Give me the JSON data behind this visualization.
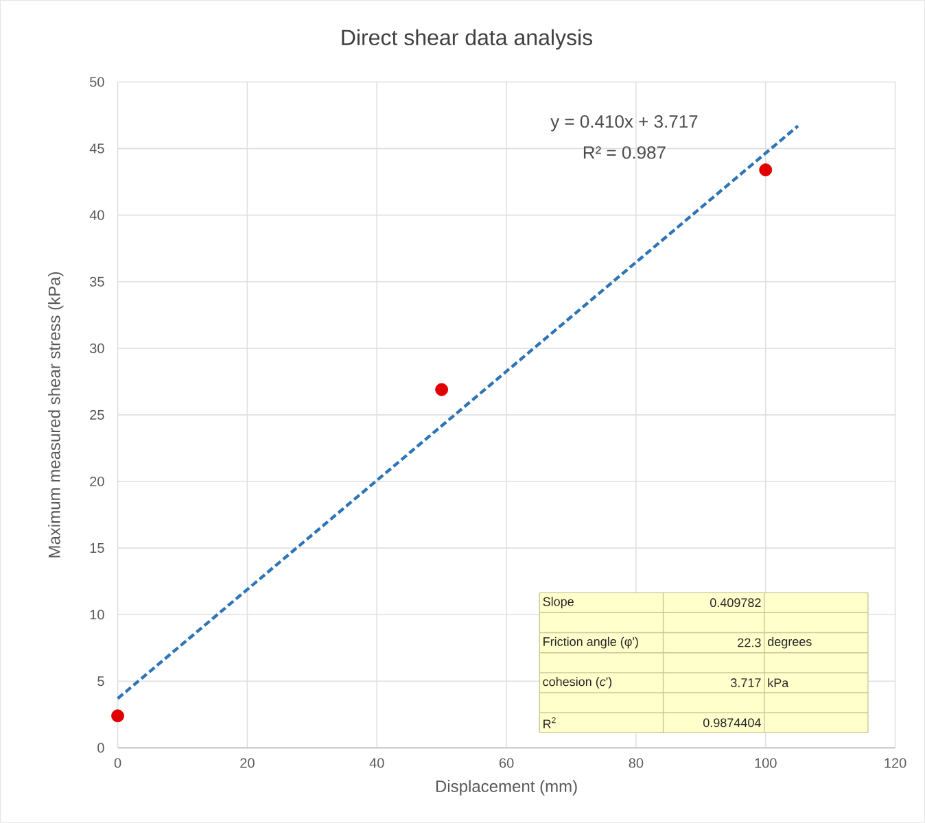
{
  "chart_data": {
    "type": "scatter",
    "title": "Direct shear data analysis",
    "xlabel": "Displacement (mm)",
    "ylabel": "Maximum measured shear stress (kPa)",
    "xlim": [
      0,
      120
    ],
    "ylim": [
      0,
      50
    ],
    "xticks": [
      0,
      20,
      40,
      60,
      80,
      100,
      120
    ],
    "yticks": [
      0,
      5,
      10,
      15,
      20,
      25,
      30,
      35,
      40,
      45,
      50
    ],
    "grid": true,
    "series": [
      {
        "color": "#e00000",
        "marker": "circle",
        "x": [
          0,
          50,
          100
        ],
        "values": [
          2.4,
          26.9,
          43.4
        ]
      },
      {
        "type": "line",
        "color": "#2e75b6",
        "marker": "none",
        "line_style": "dashed",
        "x": [
          0,
          105
        ],
        "values": [
          3.7,
          46.7
        ]
      }
    ],
    "annotations": [
      "y = 0.410x + 3.717",
      "R² = 0.987",
      "Slope",
      "0.409782",
      "Friction angle (φ')",
      "22.3",
      "degrees",
      "cohesion (*c*')",
      "3.717",
      "kPa",
      "R$^{2}$",
      "0.9874404"
    ]
  }
}
